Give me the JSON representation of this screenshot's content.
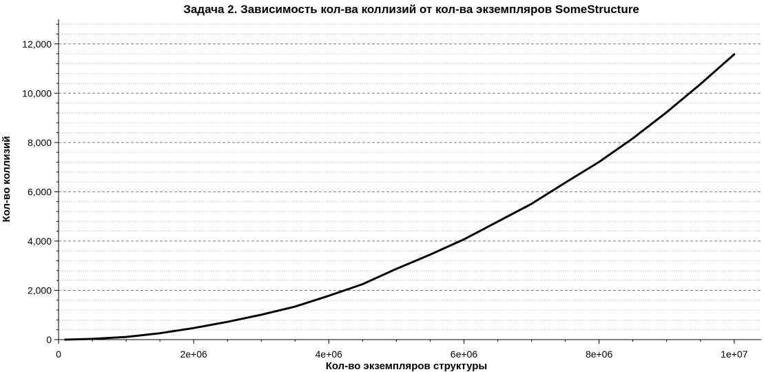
{
  "chart_data": {
    "type": "line",
    "title": "Задача 2. Зависимость кол-ва коллизий от кол-ва экземпляров SomeStructure",
    "xlabel": "Кол-во экземпляров структуры",
    "ylabel": "Кол-во коллизий",
    "xlim": [
      0,
      10400000
    ],
    "ylim": [
      0,
      13000
    ],
    "x_ticks": [
      0,
      2000000,
      4000000,
      6000000,
      8000000,
      10000000
    ],
    "x_tick_labels": [
      "0",
      "2e+06",
      "4e+06",
      "6e+06",
      "8e+06",
      "1e+07"
    ],
    "y_ticks": [
      0,
      2000,
      4000,
      6000,
      8000,
      10000,
      12000
    ],
    "y_tick_labels": [
      "0",
      "2,000",
      "4,000",
      "6,000",
      "8,000",
      "10,000",
      "12,000"
    ],
    "grid": true,
    "legend": "none",
    "line_color": "#000000",
    "series": [
      {
        "x": [
          100000,
          500000,
          1000000,
          1500000,
          2000000,
          2500000,
          3000000,
          3500000,
          4000000,
          4500000,
          5000000,
          5500000,
          6000000,
          6500000,
          7000000,
          7500000,
          8000000,
          8500000,
          9000000,
          9500000,
          10000000
        ],
        "values": [
          0,
          30,
          110,
          260,
          470,
          720,
          1010,
          1340,
          1780,
          2250,
          2870,
          3450,
          4070,
          4790,
          5510,
          6370,
          7210,
          8170,
          9230,
          10370,
          11580
        ]
      }
    ]
  }
}
